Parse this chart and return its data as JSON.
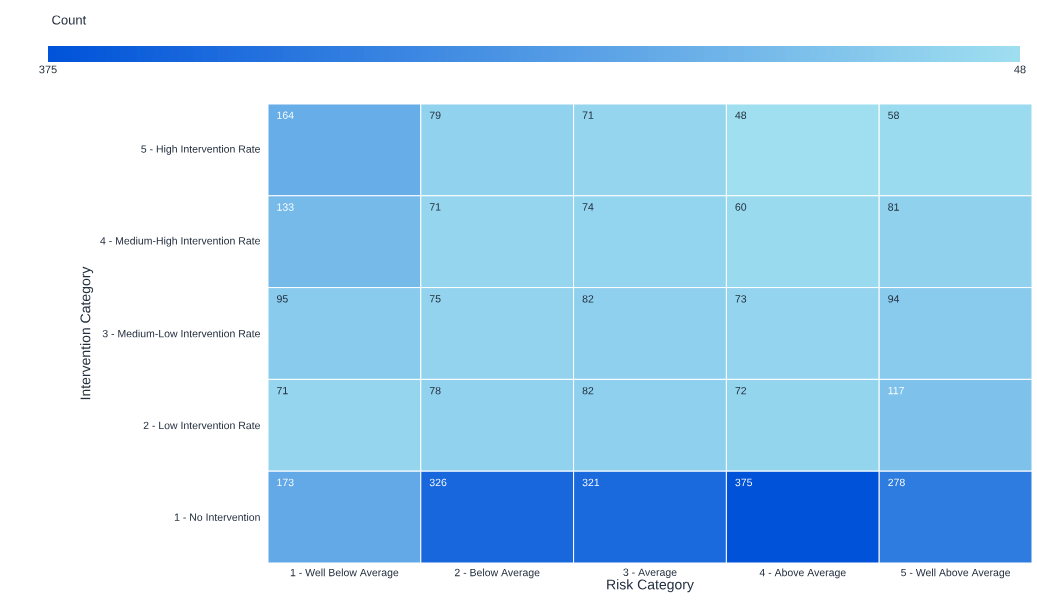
{
  "chart_data": {
    "type": "heatmap",
    "xlabel": "Risk Category",
    "ylabel": "Intervention Category",
    "clabel": "Count",
    "categories": [
      "1 - Well Below Average",
      "2 - Below Average",
      "3 - Average",
      "4 - Above Average",
      "5 - Well Above Average"
    ],
    "y_categories": [
      "5 - High Intervention Rate",
      "4 - Medium-High Intervention Rate",
      "3 - Medium-Low Intervention Rate",
      "2 - Low Intervention Rate",
      "1 - No Intervention"
    ],
    "cells": [
      [
        164,
        79,
        71,
        48,
        58
      ],
      [
        133,
        71,
        74,
        60,
        81
      ],
      [
        95,
        75,
        82,
        73,
        94
      ],
      [
        71,
        78,
        82,
        72,
        117
      ],
      [
        173,
        326,
        321,
        375,
        278
      ]
    ],
    "clim": [
      375,
      48
    ],
    "cticks": [
      375,
      48
    ],
    "data_labels": true
  }
}
